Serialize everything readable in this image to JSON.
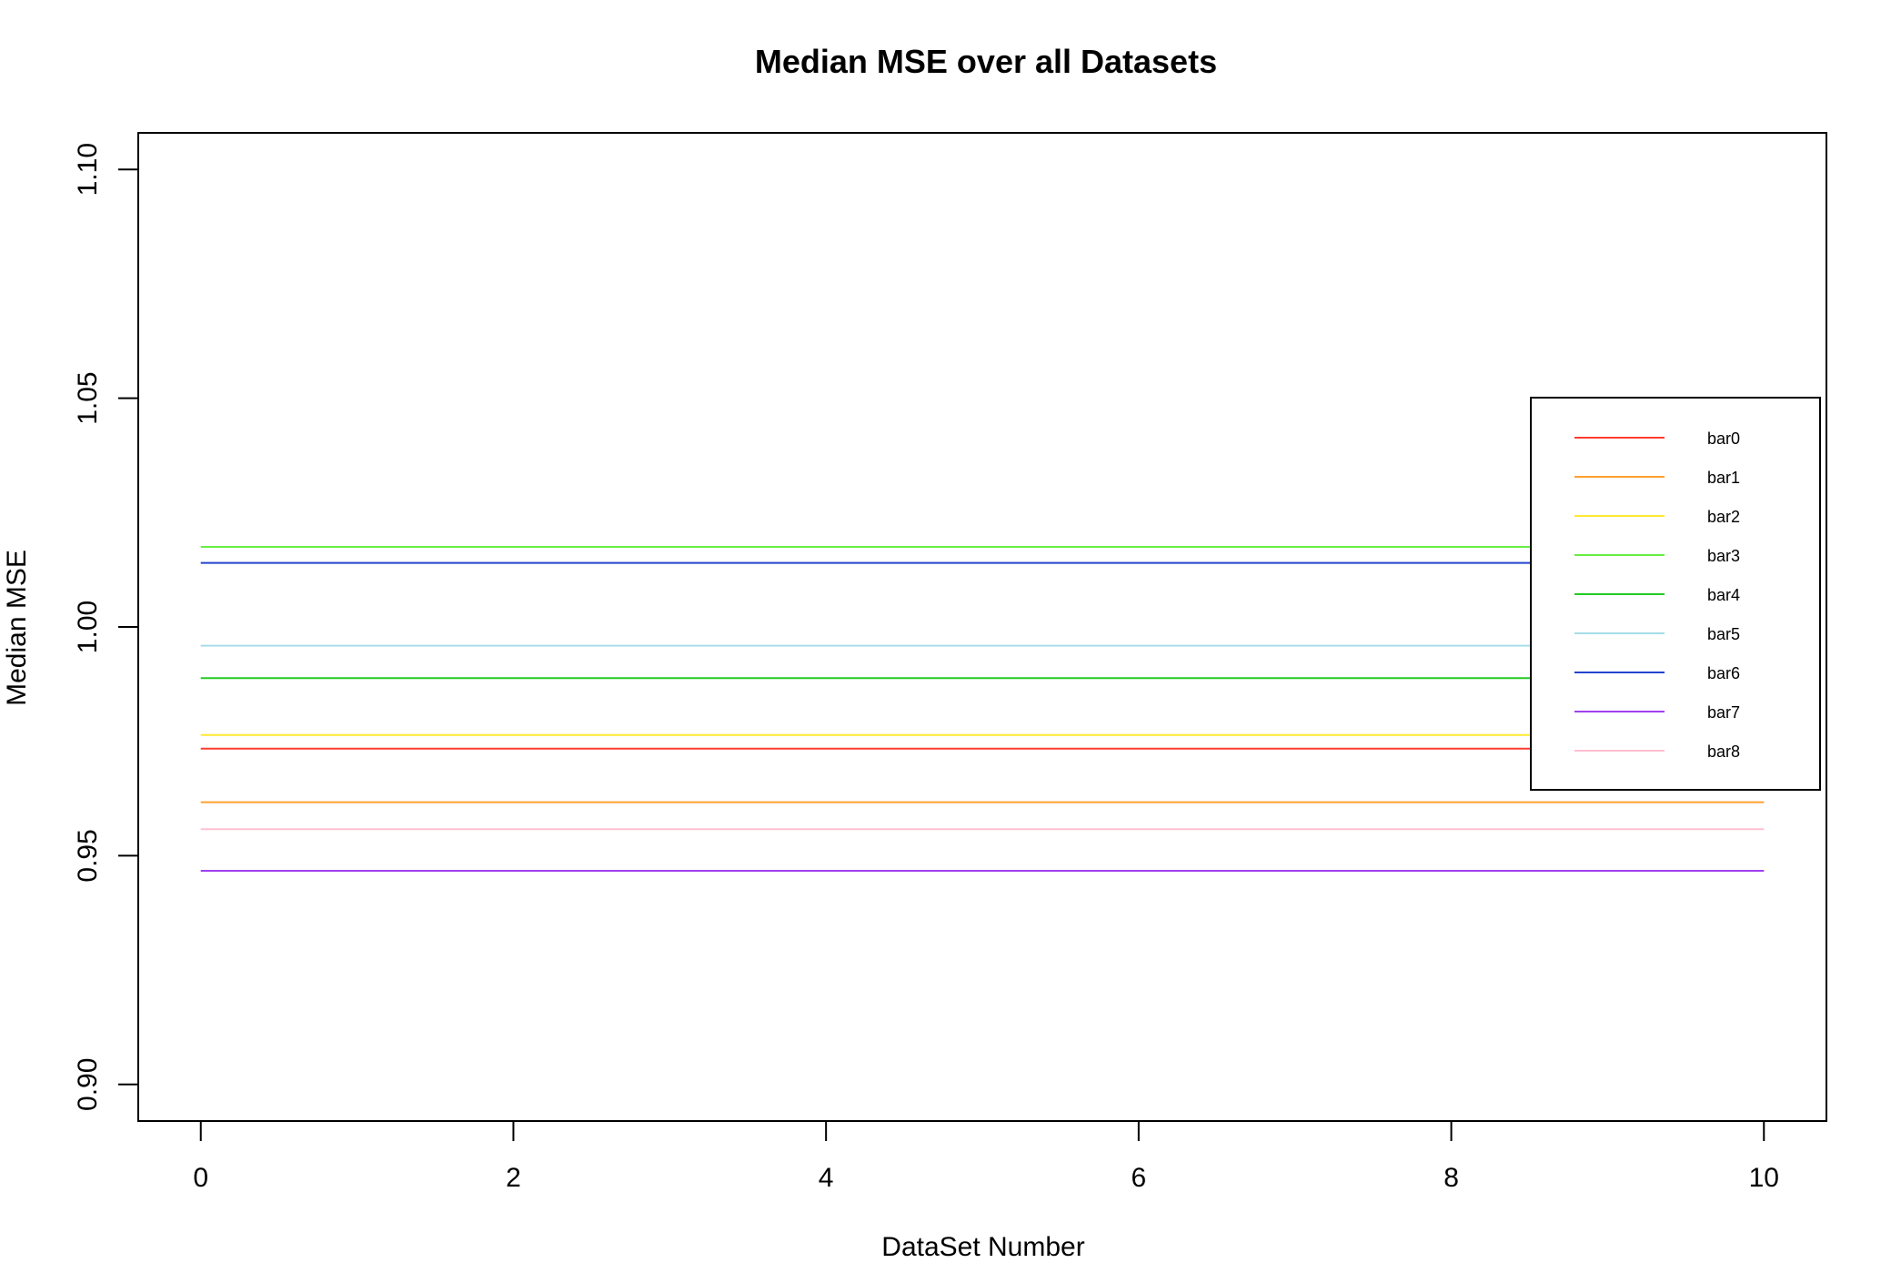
{
  "chart_data": {
    "type": "line",
    "title": "Median MSE over all Datasets",
    "xlabel": "DataSet Number",
    "ylabel": "Median MSE",
    "xlim": [
      -0.4,
      10.4
    ],
    "ylim": [
      0.892,
      1.108
    ],
    "x_ticks": [
      0,
      2,
      4,
      6,
      8,
      10
    ],
    "y_ticks": [
      0.9,
      0.95,
      1.0,
      1.05,
      1.1
    ],
    "y_tick_labels": [
      "0.90",
      "0.95",
      "1.00",
      "1.05",
      "1.10"
    ],
    "grid": false,
    "legend_position": "right",
    "x": [
      0,
      10
    ],
    "series": [
      {
        "name": "bar0",
        "color": "#ff3b30",
        "values": [
          0.9734,
          0.9734
        ]
      },
      {
        "name": "bar1",
        "color": "#ffa030",
        "values": [
          0.9617,
          0.9617
        ]
      },
      {
        "name": "bar2",
        "color": "#ffea30",
        "values": [
          0.9764,
          0.9764
        ]
      },
      {
        "name": "bar3",
        "color": "#66ee44",
        "values": [
          1.0175,
          1.0175
        ]
      },
      {
        "name": "bar4",
        "color": "#22cc22",
        "values": [
          0.9888,
          0.9888
        ]
      },
      {
        "name": "bar5",
        "color": "#a6dde8",
        "values": [
          0.9959,
          0.9959
        ]
      },
      {
        "name": "bar6",
        "color": "#2244cc",
        "values": [
          1.014,
          1.014
        ]
      },
      {
        "name": "bar7",
        "color": "#a040f0",
        "values": [
          0.9467,
          0.9467
        ]
      },
      {
        "name": "bar8",
        "color": "#ffbfd0",
        "values": [
          0.9558,
          0.9558
        ]
      }
    ]
  }
}
